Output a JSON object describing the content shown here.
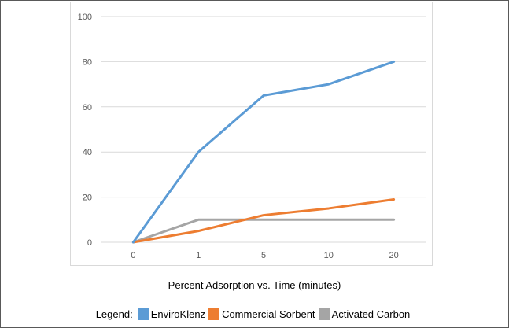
{
  "caption": "Percent Adsorption vs. Time (minutes)",
  "legend": {
    "title": "Legend:",
    "items": [
      {
        "label": "EnviroKlenz",
        "color": "#5b9bd5"
      },
      {
        "label": "Commercial Sorbent",
        "color": "#ed7d31"
      },
      {
        "label": "Activated Carbon",
        "color": "#a5a5a5"
      }
    ]
  },
  "chart_data": {
    "type": "line",
    "title": "Percent Adsorption vs. Time (minutes)",
    "xlabel": "",
    "ylabel": "",
    "categories": [
      "0",
      "1",
      "5",
      "10",
      "20"
    ],
    "ylim": [
      0,
      100
    ],
    "yticks": [
      0,
      20,
      40,
      60,
      80,
      100
    ],
    "grid": true,
    "legend_position": "bottom",
    "series": [
      {
        "name": "EnviroKlenz",
        "color": "#5b9bd5",
        "values": [
          0,
          40,
          65,
          70,
          80
        ]
      },
      {
        "name": "Commercial Sorbent",
        "color": "#ed7d31",
        "values": [
          0,
          5,
          12,
          15,
          19
        ]
      },
      {
        "name": "Activated Carbon",
        "color": "#a5a5a5",
        "values": [
          0,
          10,
          10,
          10,
          10
        ]
      }
    ]
  }
}
